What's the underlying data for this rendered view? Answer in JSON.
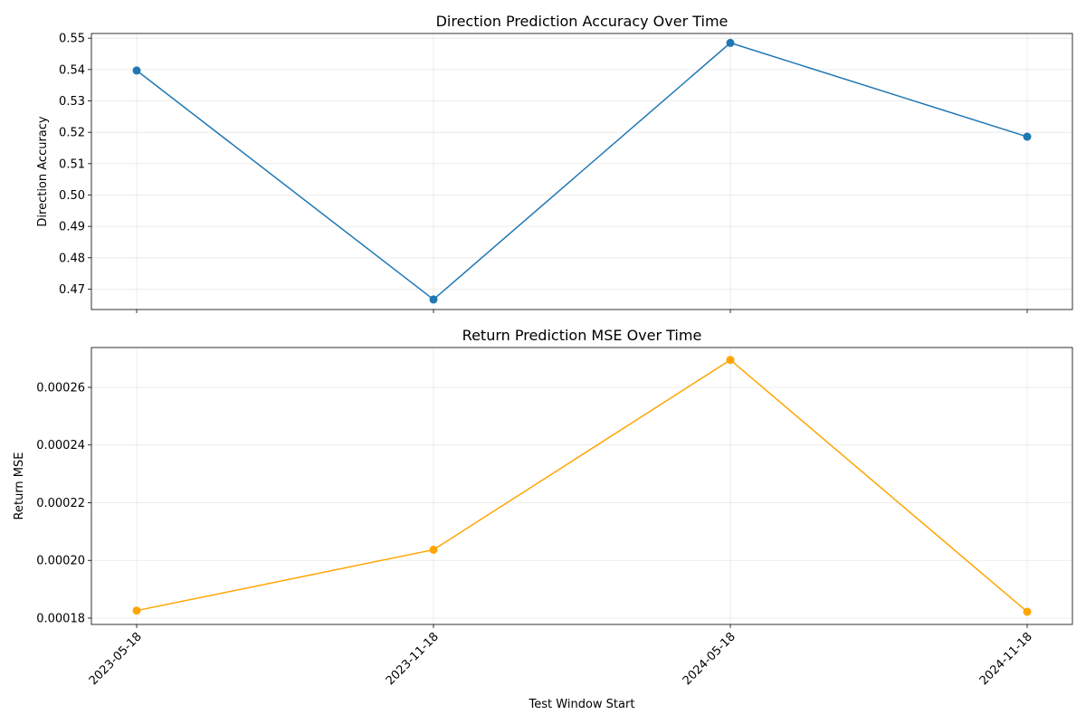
{
  "chart_data": [
    {
      "type": "line",
      "title": "Direction Prediction Accuracy Over Time",
      "xlabel": "",
      "ylabel": "Direction Accuracy",
      "categories": [
        "2023-05-18",
        "2023-11-18",
        "2024-05-18",
        "2024-11-18"
      ],
      "series": [
        {
          "values": [
            0.5397,
            0.4667,
            0.5485,
            0.5186
          ],
          "color": "#1f77b4",
          "marker": "circle"
        }
      ],
      "ylim": [
        0.4635,
        0.5515
      ],
      "yticks": [
        0.47,
        0.48,
        0.49,
        0.5,
        0.51,
        0.52,
        0.53,
        0.54,
        0.55
      ],
      "yticklabels": [
        "0.47",
        "0.48",
        "0.49",
        "0.50",
        "0.51",
        "0.52",
        "0.53",
        "0.54",
        "0.55"
      ],
      "show_xticklabels": false,
      "grid": true
    },
    {
      "type": "line",
      "title": "Return Prediction MSE Over Time",
      "xlabel": "Test Window Start",
      "ylabel": "Return MSE",
      "categories": [
        "2023-05-18",
        "2023-11-18",
        "2024-05-18",
        "2024-11-18"
      ],
      "series": [
        {
          "values": [
            0.0001826,
            0.0002037,
            0.0002695,
            0.0001822
          ],
          "color": "#ffa500",
          "marker": "circle"
        }
      ],
      "ylim": [
        0.0001778,
        0.0002738
      ],
      "yticks": [
        0.00018,
        0.0002,
        0.00022,
        0.00024,
        0.00026
      ],
      "yticklabels": [
        "0.00018",
        "0.00020",
        "0.00022",
        "0.00024",
        "0.00026"
      ],
      "show_xticklabels": true,
      "xtick_rotation": 45,
      "grid": true
    }
  ]
}
